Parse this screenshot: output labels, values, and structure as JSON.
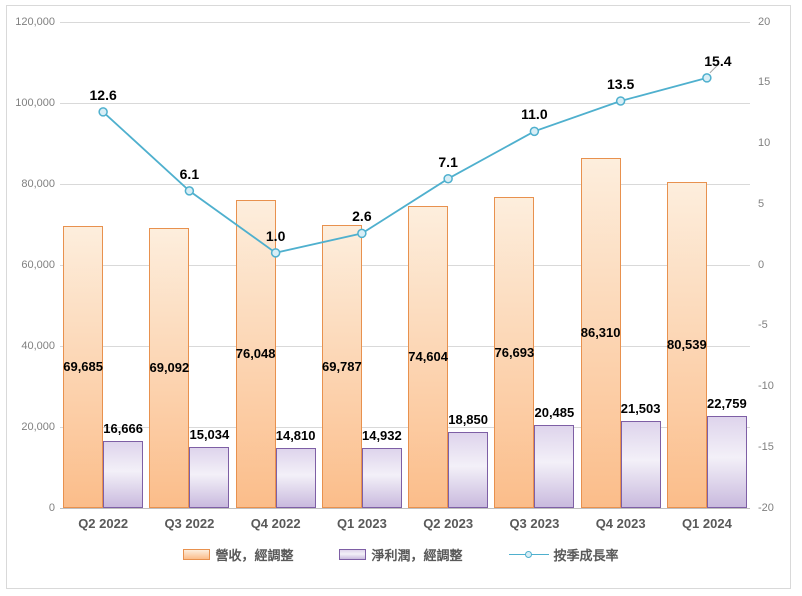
{
  "chart_data": {
    "type": "combo",
    "title": "",
    "categories": [
      "Q2 2022",
      "Q3 2022",
      "Q4 2022",
      "Q1 2023",
      "Q2 2023",
      "Q3 2023",
      "Q4 2023",
      "Q1 2024"
    ],
    "series": [
      {
        "name": "營收，經調整",
        "kind": "bar",
        "axis": "left",
        "values": [
          69685,
          69092,
          76048,
          69787,
          74604,
          76693,
          86310,
          80539
        ],
        "labels": [
          "69,685",
          "69,092",
          "76,048",
          "69,787",
          "74,604",
          "76,693",
          "86,310",
          "80,539"
        ],
        "label_position": "center",
        "fill_top": "#fdeedd",
        "fill_bottom": "#fbbd8a",
        "border_color": "#e8914e"
      },
      {
        "name": "淨利潤，經調整",
        "kind": "bar",
        "axis": "left",
        "values": [
          16666,
          15034,
          14810,
          14932,
          18850,
          20485,
          21503,
          22759
        ],
        "labels": [
          "16,666",
          "15,034",
          "14,810",
          "14,932",
          "18,850",
          "20,485",
          "21,503",
          "22,759"
        ],
        "label_position": "outside-end",
        "fill_top": "#ded4ec",
        "fill_mid": "#f3f0f8",
        "fill_bottom": "#c9bade",
        "border_color": "#7e5fa5"
      },
      {
        "name": "按季成長率",
        "kind": "line",
        "axis": "right",
        "values": [
          12.6,
          6.1,
          1.0,
          2.6,
          7.1,
          11.0,
          13.5,
          15.4
        ],
        "labels": [
          "12.6",
          "6.1",
          "1.0",
          "2.6",
          "7.1",
          "11.0",
          "13.5",
          "15.4"
        ],
        "line_color": "#4fb0ce",
        "marker_fill": "#d8eef6",
        "last_label_has_leader": true
      }
    ],
    "left_axis": {
      "min": 0,
      "max": 120000,
      "step": 20000,
      "tick_labels": [
        "0",
        "20,000",
        "40,000",
        "60,000",
        "80,000",
        "100,000",
        "120,000"
      ]
    },
    "right_axis": {
      "min": -20,
      "max": 20,
      "step": 5,
      "tick_labels": [
        "-20",
        "-15",
        "-10",
        "-5",
        "0",
        "5",
        "10",
        "15",
        "20"
      ]
    },
    "grid": "horizontal",
    "legend_position": "bottom",
    "colors": {
      "gridline": "#d9d9d9",
      "axis_line": "#bfbfbf",
      "tick_text": "#808080",
      "category_text": "#595959",
      "value_text": "#000000",
      "leader_line": "#a6a6a6",
      "frame_border": "#d9d9d9"
    }
  },
  "legend": {
    "items": [
      {
        "label": "營收，經調整"
      },
      {
        "label": "淨利潤，經調整"
      },
      {
        "label": "按季成長率"
      }
    ]
  }
}
